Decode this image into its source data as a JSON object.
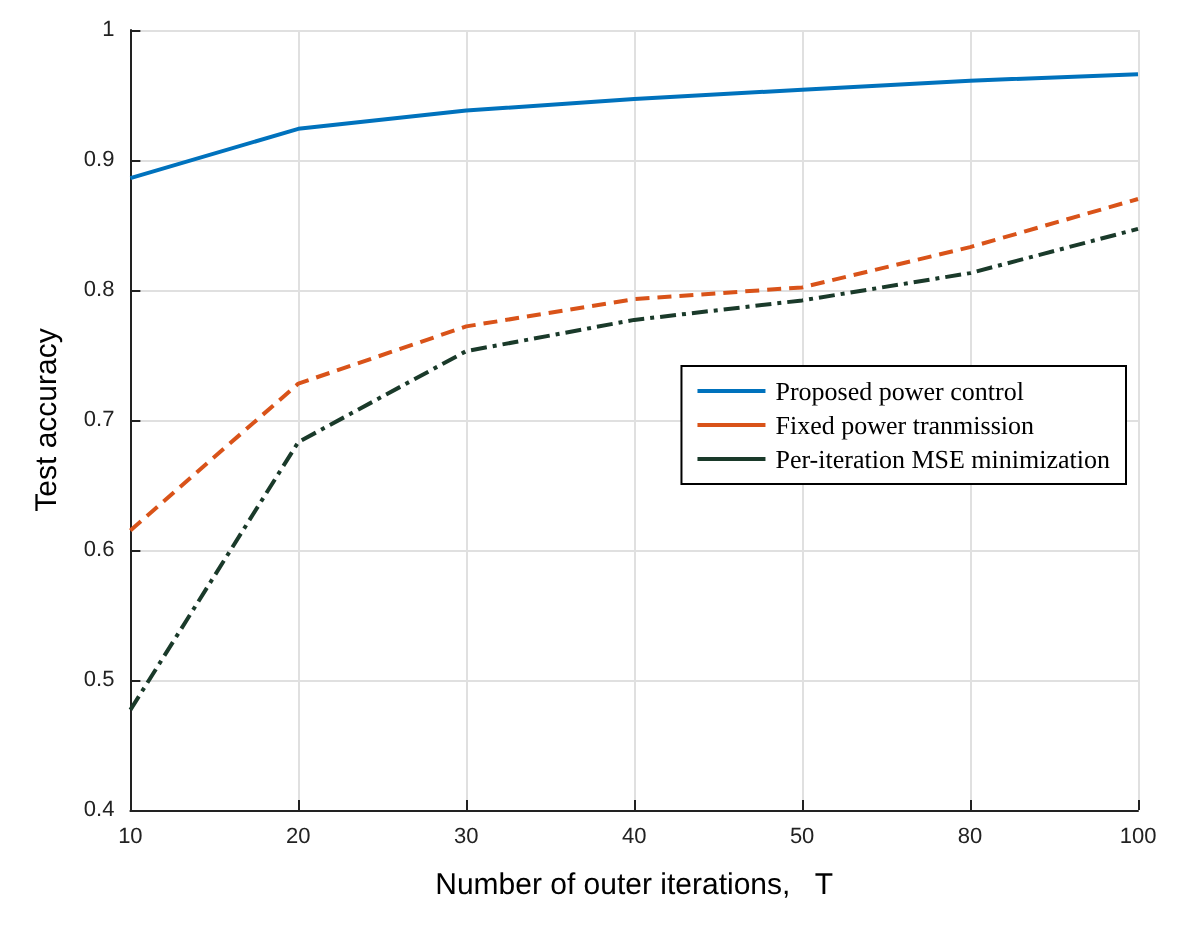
{
  "chart_data": {
    "type": "line",
    "xlabel": "Number of outer iterations,   T",
    "ylabel": "Test accuracy",
    "categories": [
      "10",
      "20",
      "30",
      "40",
      "50",
      "80",
      "100"
    ],
    "ylim": [
      0.4,
      1
    ],
    "yticks": [
      0.4,
      0.5,
      0.6,
      0.7,
      0.8,
      0.9,
      1
    ],
    "grid": true,
    "legend": "right",
    "marker": "none",
    "series": [
      {
        "name": "Proposed power control",
        "color": "#0072bd",
        "line_style": "solid",
        "values": [
          0.886,
          0.924,
          0.938,
          0.947,
          0.954,
          0.961,
          0.966
        ]
      },
      {
        "name": "Fixed power tranmission",
        "color": "#d95319",
        "line_style": "dashed",
        "values": [
          0.615,
          0.728,
          0.772,
          0.793,
          0.802,
          0.833,
          0.87
        ]
      },
      {
        "name": "Per-iteration MSE minimization",
        "color": "#1a3a2a",
        "line_style": "dashed",
        "values": [
          0.477,
          0.683,
          0.753,
          0.777,
          0.792,
          0.813,
          0.847
        ]
      }
    ]
  }
}
